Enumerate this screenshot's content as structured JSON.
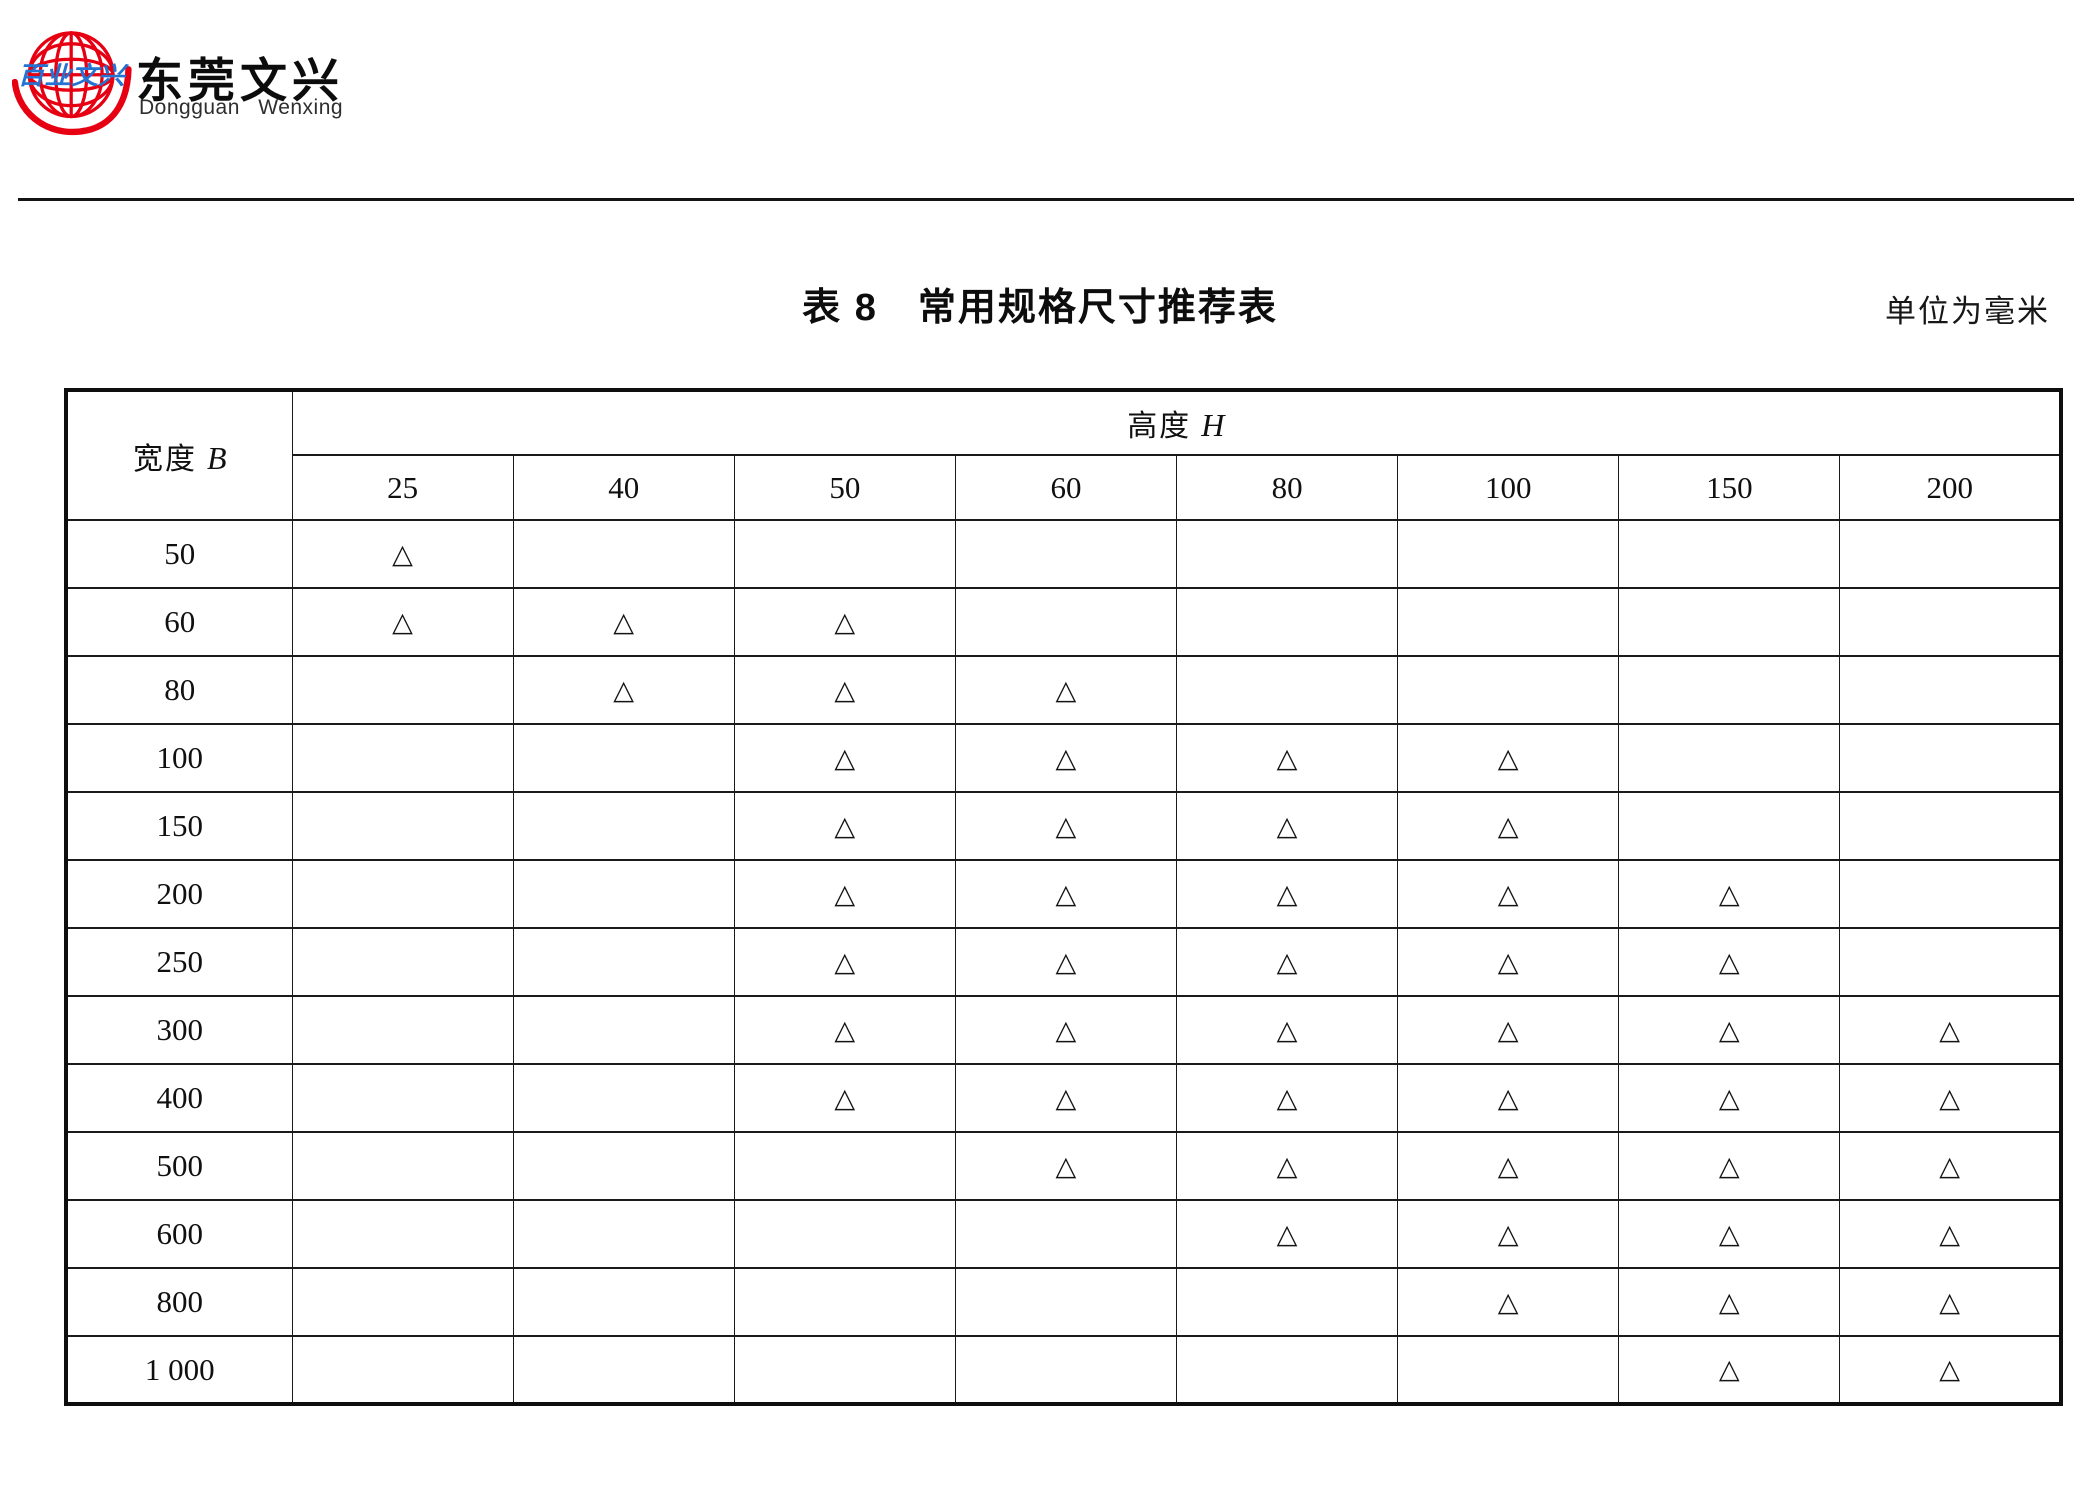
{
  "logo": {
    "globe_text": "百业文兴",
    "company_zh": "东莞文兴",
    "company_en": "Dongguan  Wenxing",
    "globe_color": "#e60012",
    "globe_text_color": "#2473d2"
  },
  "caption": {
    "title": "表 8　常用规格尺寸推荐表",
    "unit_note": "单位为毫米"
  },
  "table": {
    "corner_label_text": "宽度",
    "corner_label_var": "B",
    "top_header_text": "高度",
    "top_header_var": "H",
    "columns": [
      "25",
      "40",
      "50",
      "60",
      "80",
      "100",
      "150",
      "200"
    ],
    "marker": "△",
    "rows": [
      {
        "label": "50",
        "marks": [
          1,
          0,
          0,
          0,
          0,
          0,
          0,
          0
        ]
      },
      {
        "label": "60",
        "marks": [
          1,
          1,
          1,
          0,
          0,
          0,
          0,
          0
        ]
      },
      {
        "label": "80",
        "marks": [
          0,
          1,
          1,
          1,
          0,
          0,
          0,
          0
        ]
      },
      {
        "label": "100",
        "marks": [
          0,
          0,
          1,
          1,
          1,
          1,
          0,
          0
        ]
      },
      {
        "label": "150",
        "marks": [
          0,
          0,
          1,
          1,
          1,
          1,
          0,
          0
        ]
      },
      {
        "label": "200",
        "marks": [
          0,
          0,
          1,
          1,
          1,
          1,
          1,
          0
        ]
      },
      {
        "label": "250",
        "marks": [
          0,
          0,
          1,
          1,
          1,
          1,
          1,
          0
        ]
      },
      {
        "label": "300",
        "marks": [
          0,
          0,
          1,
          1,
          1,
          1,
          1,
          1
        ]
      },
      {
        "label": "400",
        "marks": [
          0,
          0,
          1,
          1,
          1,
          1,
          1,
          1
        ]
      },
      {
        "label": "500",
        "marks": [
          0,
          0,
          0,
          1,
          1,
          1,
          1,
          1
        ]
      },
      {
        "label": "600",
        "marks": [
          0,
          0,
          0,
          0,
          1,
          1,
          1,
          1
        ]
      },
      {
        "label": "800",
        "marks": [
          0,
          0,
          0,
          0,
          0,
          1,
          1,
          1
        ]
      },
      {
        "label": "1 000",
        "marks": [
          0,
          0,
          0,
          0,
          0,
          0,
          1,
          1
        ]
      }
    ]
  }
}
